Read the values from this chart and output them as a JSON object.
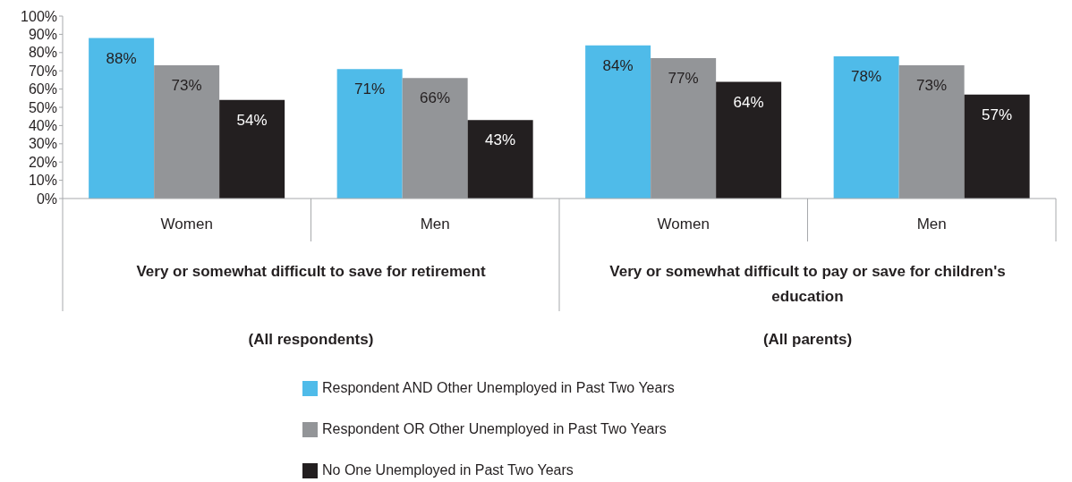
{
  "chart_data": {
    "type": "bar",
    "categories": [
      "Women",
      "Men",
      "Women",
      "Men"
    ],
    "series": [
      {
        "name": "Respondent AND Other Unemployed in Past Two Years",
        "color": "#4fbbe9",
        "values": [
          88,
          71,
          84,
          78
        ],
        "value_labels": [
          "88%",
          "71%",
          "84%",
          "78%"
        ]
      },
      {
        "name": "Respondent OR Other Unemployed in Past Two Years",
        "color": "#939598",
        "values": [
          73,
          66,
          77,
          73
        ],
        "value_labels": [
          "73%",
          "66%",
          "77%",
          "73%"
        ]
      },
      {
        "name": "No One Unemployed in Past Two Years",
        "color": "#231f20",
        "values": [
          54,
          43,
          64,
          57
        ],
        "value_labels": [
          "54%",
          "43%",
          "64%",
          "57%"
        ]
      }
    ],
    "ylim": [
      0,
      100
    ],
    "yticks": [
      {
        "value": 0,
        "label": "0%"
      },
      {
        "value": 10,
        "label": "10%"
      },
      {
        "value": 20,
        "label": "20%"
      },
      {
        "value": 30,
        "label": "30%"
      },
      {
        "value": 40,
        "label": "40%"
      },
      {
        "value": 50,
        "label": "50%"
      },
      {
        "value": 60,
        "label": "60%"
      },
      {
        "value": 70,
        "label": "70%"
      },
      {
        "value": 80,
        "label": "80%"
      },
      {
        "value": 90,
        "label": "90%"
      },
      {
        "value": 100,
        "label": "100%"
      }
    ],
    "annotations": [
      "Very or somewhat difficult to save for retirement",
      "(All respondents)",
      "Very or somewhat difficult to pay or save for children's education",
      "(All parents)"
    ],
    "grid": false,
    "legend": "bottom"
  }
}
